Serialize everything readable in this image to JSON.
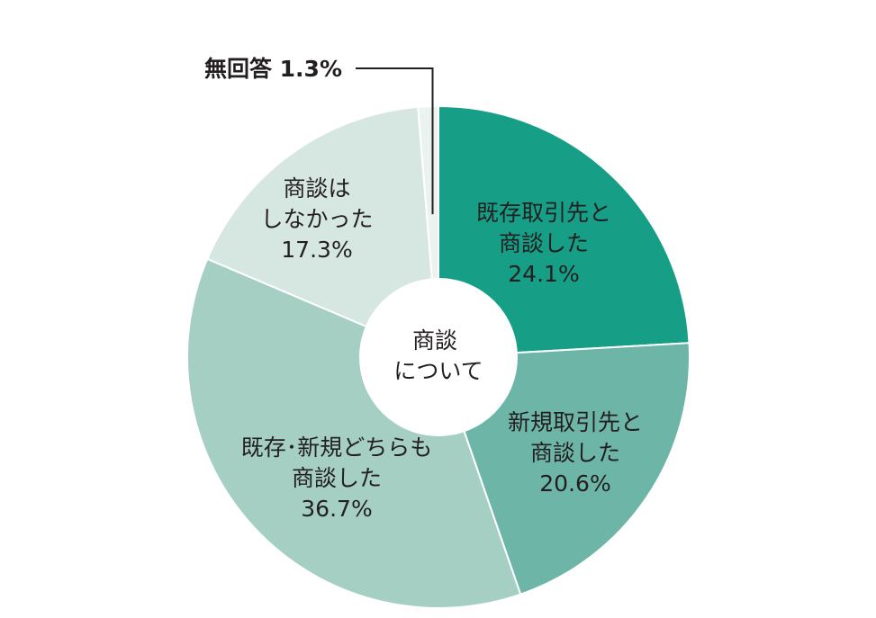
{
  "chart_data": {
    "type": "pie",
    "center_label": [
      "商談",
      "について"
    ],
    "slices": [
      {
        "lines": [
          "既存取引先と",
          "商談した"
        ],
        "value": 24.1,
        "value_label": "24.1%",
        "color": "#169e87"
      },
      {
        "lines": [
          "新規取引先と",
          "商談した"
        ],
        "value": 20.6,
        "value_label": "20.6%",
        "color": "#6db6a7"
      },
      {
        "lines": [
          "既存･新規どちらも",
          "商談した"
        ],
        "value": 36.7,
        "value_label": "36.7%",
        "color": "#a6cfc4"
      },
      {
        "lines": [
          "商談は",
          "しなかった"
        ],
        "value": 17.3,
        "value_label": "17.3%",
        "color": "#d6e7e2"
      },
      {
        "lines": [
          "無回答"
        ],
        "value": 1.3,
        "value_label": "1.3%",
        "color": "#ebf3f1",
        "callout": true
      }
    ]
  }
}
